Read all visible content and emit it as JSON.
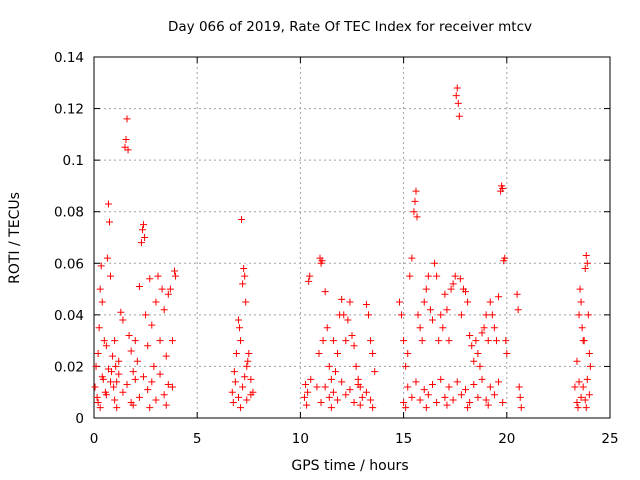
{
  "chart_data": {
    "type": "scatter",
    "title": "Day 066 of 2019, Rate Of TEC Index for receiver mtcv",
    "xlabel": "GPS time / hours",
    "ylabel": "ROTI / TECUs",
    "xlim": [
      0,
      25
    ],
    "ylim": [
      0,
      0.14
    ],
    "x_ticks": [
      0,
      5,
      10,
      15,
      20,
      25
    ],
    "x_tick_labels": [
      "0",
      "5",
      "10",
      "15",
      "20",
      "25"
    ],
    "y_ticks": [
      0,
      0.02,
      0.04,
      0.06,
      0.08,
      0.1,
      0.12,
      0.14
    ],
    "y_tick_labels": [
      "0",
      "0.02",
      "0.04",
      "0.06",
      "0.08",
      "0.1",
      "0.12",
      "0.14"
    ],
    "grid": true,
    "marker": "plus",
    "color": "#ff0000",
    "series": [
      {
        "points": [
          [
            0.05,
            0.012
          ],
          [
            0.1,
            0.02
          ],
          [
            0.15,
            0.008
          ],
          [
            0.2,
            0.025
          ],
          [
            0.25,
            0.035
          ],
          [
            0.3,
            0.05
          ],
          [
            0.35,
            0.059
          ],
          [
            0.4,
            0.045
          ],
          [
            0.45,
            0.015
          ],
          [
            0.5,
            0.03
          ],
          [
            0.55,
            0.01
          ],
          [
            0.6,
            0.028
          ],
          [
            0.65,
            0.062
          ],
          [
            0.7,
            0.083
          ],
          [
            0.75,
            0.076
          ],
          [
            0.8,
            0.055
          ],
          [
            0.85,
            0.018
          ],
          [
            0.9,
            0.024
          ],
          [
            0.95,
            0.012
          ],
          [
            1.0,
            0.03
          ],
          [
            1.05,
            0.02
          ],
          [
            1.1,
            0.014
          ],
          [
            1.2,
            0.022
          ],
          [
            1.3,
            0.041
          ],
          [
            1.4,
            0.038
          ],
          [
            1.5,
            0.105
          ],
          [
            1.55,
            0.108
          ],
          [
            1.6,
            0.116
          ],
          [
            1.65,
            0.104
          ],
          [
            1.7,
            0.032
          ],
          [
            1.8,
            0.026
          ],
          [
            1.9,
            0.018
          ],
          [
            2.0,
            0.03
          ],
          [
            2.1,
            0.022
          ],
          [
            2.2,
            0.051
          ],
          [
            2.3,
            0.068
          ],
          [
            2.35,
            0.073
          ],
          [
            2.4,
            0.075
          ],
          [
            2.45,
            0.07
          ],
          [
            2.5,
            0.04
          ],
          [
            2.6,
            0.028
          ],
          [
            2.7,
            0.054
          ],
          [
            2.8,
            0.036
          ],
          [
            2.9,
            0.02
          ],
          [
            3.0,
            0.045
          ],
          [
            3.1,
            0.055
          ],
          [
            3.2,
            0.03
          ],
          [
            3.3,
            0.05
          ],
          [
            3.4,
            0.042
          ],
          [
            3.5,
            0.024
          ],
          [
            3.6,
            0.048
          ],
          [
            3.7,
            0.05
          ],
          [
            3.8,
            0.03
          ],
          [
            3.9,
            0.057
          ],
          [
            3.95,
            0.055
          ],
          [
            0.2,
            0.006
          ],
          [
            0.6,
            0.009
          ],
          [
            1.0,
            0.007
          ],
          [
            1.4,
            0.01
          ],
          [
            1.8,
            0.006
          ],
          [
            2.2,
            0.008
          ],
          [
            2.6,
            0.011
          ],
          [
            3.0,
            0.007
          ],
          [
            3.4,
            0.009
          ],
          [
            3.8,
            0.012
          ],
          [
            0.4,
            0.016
          ],
          [
            0.8,
            0.014
          ],
          [
            1.2,
            0.017
          ],
          [
            1.6,
            0.013
          ],
          [
            2.0,
            0.015
          ],
          [
            2.4,
            0.016
          ],
          [
            2.8,
            0.014
          ],
          [
            3.2,
            0.017
          ],
          [
            3.6,
            0.013
          ],
          [
            0.3,
            0.004
          ],
          [
            1.1,
            0.004
          ],
          [
            1.9,
            0.005
          ],
          [
            2.7,
            0.004
          ],
          [
            3.5,
            0.005
          ],
          [
            0.7,
            0.019
          ],
          [
            6.7,
            0.01
          ],
          [
            6.8,
            0.018
          ],
          [
            6.9,
            0.025
          ],
          [
            7.0,
            0.038
          ],
          [
            7.05,
            0.035
          ],
          [
            7.1,
            0.03
          ],
          [
            7.15,
            0.077
          ],
          [
            7.2,
            0.052
          ],
          [
            7.25,
            0.058
          ],
          [
            7.3,
            0.055
          ],
          [
            7.35,
            0.045
          ],
          [
            7.4,
            0.02
          ],
          [
            7.5,
            0.025
          ],
          [
            7.6,
            0.015
          ],
          [
            7.7,
            0.01
          ],
          [
            6.75,
            0.006
          ],
          [
            7.0,
            0.008
          ],
          [
            7.2,
            0.012
          ],
          [
            7.4,
            0.007
          ],
          [
            7.6,
            0.009
          ],
          [
            6.85,
            0.014
          ],
          [
            7.3,
            0.016
          ],
          [
            7.1,
            0.004
          ],
          [
            7.45,
            0.022
          ],
          [
            10.2,
            0.008
          ],
          [
            10.25,
            0.013
          ],
          [
            10.3,
            0.005
          ],
          [
            10.35,
            0.01
          ],
          [
            10.4,
            0.053
          ],
          [
            10.45,
            0.055
          ],
          [
            10.5,
            0.015
          ],
          [
            10.8,
            0.012
          ],
          [
            10.9,
            0.025
          ],
          [
            10.95,
            0.062
          ],
          [
            11.0,
            0.06
          ],
          [
            11.05,
            0.061
          ],
          [
            11.1,
            0.03
          ],
          [
            11.2,
            0.049
          ],
          [
            11.3,
            0.035
          ],
          [
            11.4,
            0.02
          ],
          [
            11.5,
            0.015
          ],
          [
            11.6,
            0.03
          ],
          [
            11.7,
            0.018
          ],
          [
            11.8,
            0.025
          ],
          [
            11.9,
            0.04
          ],
          [
            12.0,
            0.046
          ],
          [
            12.1,
            0.04
          ],
          [
            12.2,
            0.03
          ],
          [
            12.3,
            0.038
          ],
          [
            12.4,
            0.045
          ],
          [
            12.5,
            0.032
          ],
          [
            12.6,
            0.028
          ],
          [
            12.7,
            0.02
          ],
          [
            12.8,
            0.015
          ],
          [
            12.9,
            0.012
          ],
          [
            13.2,
            0.044
          ],
          [
            13.3,
            0.04
          ],
          [
            13.4,
            0.03
          ],
          [
            13.5,
            0.025
          ],
          [
            13.6,
            0.018
          ],
          [
            11.0,
            0.006
          ],
          [
            11.4,
            0.008
          ],
          [
            11.8,
            0.007
          ],
          [
            12.2,
            0.009
          ],
          [
            12.6,
            0.006
          ],
          [
            13.0,
            0.008
          ],
          [
            13.4,
            0.007
          ],
          [
            11.2,
            0.012
          ],
          [
            11.6,
            0.01
          ],
          [
            12.0,
            0.014
          ],
          [
            12.4,
            0.011
          ],
          [
            12.8,
            0.013
          ],
          [
            13.2,
            0.01
          ],
          [
            13.5,
            0.004
          ],
          [
            12.9,
            0.005
          ],
          [
            11.5,
            0.004
          ],
          [
            14.8,
            0.045
          ],
          [
            14.9,
            0.04
          ],
          [
            15.0,
            0.03
          ],
          [
            15.1,
            0.02
          ],
          [
            15.2,
            0.025
          ],
          [
            15.3,
            0.055
          ],
          [
            15.4,
            0.062
          ],
          [
            15.5,
            0.08
          ],
          [
            15.55,
            0.084
          ],
          [
            15.6,
            0.088
          ],
          [
            15.65,
            0.078
          ],
          [
            15.7,
            0.04
          ],
          [
            15.8,
            0.035
          ],
          [
            15.9,
            0.03
          ],
          [
            16.0,
            0.045
          ],
          [
            16.1,
            0.05
          ],
          [
            16.2,
            0.055
          ],
          [
            16.3,
            0.042
          ],
          [
            16.4,
            0.038
          ],
          [
            16.5,
            0.06
          ],
          [
            16.6,
            0.055
          ],
          [
            16.7,
            0.03
          ],
          [
            16.8,
            0.04
          ],
          [
            16.9,
            0.035
          ],
          [
            17.0,
            0.048
          ],
          [
            17.1,
            0.042
          ],
          [
            17.2,
            0.03
          ],
          [
            17.3,
            0.05
          ],
          [
            17.4,
            0.052
          ],
          [
            17.5,
            0.055
          ],
          [
            17.55,
            0.125
          ],
          [
            17.6,
            0.128
          ],
          [
            17.65,
            0.122
          ],
          [
            17.7,
            0.117
          ],
          [
            17.75,
            0.054
          ],
          [
            17.8,
            0.04
          ],
          [
            17.9,
            0.05
          ],
          [
            18.0,
            0.049
          ],
          [
            18.1,
            0.045
          ],
          [
            18.2,
            0.032
          ],
          [
            18.3,
            0.028
          ],
          [
            18.4,
            0.022
          ],
          [
            18.5,
            0.03
          ],
          [
            18.6,
            0.025
          ],
          [
            18.7,
            0.02
          ],
          [
            18.8,
            0.033
          ],
          [
            18.9,
            0.035
          ],
          [
            19.0,
            0.04
          ],
          [
            19.1,
            0.03
          ],
          [
            19.2,
            0.045
          ],
          [
            19.3,
            0.04
          ],
          [
            19.4,
            0.035
          ],
          [
            19.5,
            0.03
          ],
          [
            19.6,
            0.047
          ],
          [
            19.7,
            0.088
          ],
          [
            19.75,
            0.09
          ],
          [
            19.8,
            0.089
          ],
          [
            19.85,
            0.061
          ],
          [
            19.9,
            0.062
          ],
          [
            19.95,
            0.03
          ],
          [
            20.0,
            0.025
          ],
          [
            15.0,
            0.006
          ],
          [
            15.4,
            0.008
          ],
          [
            15.8,
            0.007
          ],
          [
            16.2,
            0.009
          ],
          [
            16.6,
            0.006
          ],
          [
            17.0,
            0.008
          ],
          [
            17.4,
            0.007
          ],
          [
            17.8,
            0.009
          ],
          [
            18.2,
            0.006
          ],
          [
            18.6,
            0.008
          ],
          [
            19.0,
            0.007
          ],
          [
            19.4,
            0.009
          ],
          [
            19.8,
            0.006
          ],
          [
            15.2,
            0.012
          ],
          [
            15.6,
            0.014
          ],
          [
            16.0,
            0.011
          ],
          [
            16.4,
            0.013
          ],
          [
            16.8,
            0.015
          ],
          [
            17.2,
            0.012
          ],
          [
            17.6,
            0.014
          ],
          [
            18.0,
            0.011
          ],
          [
            18.4,
            0.013
          ],
          [
            18.8,
            0.015
          ],
          [
            19.2,
            0.012
          ],
          [
            19.6,
            0.014
          ],
          [
            15.1,
            0.004
          ],
          [
            16.1,
            0.004
          ],
          [
            17.1,
            0.005
          ],
          [
            18.1,
            0.004
          ],
          [
            19.1,
            0.005
          ],
          [
            20.5,
            0.048
          ],
          [
            20.55,
            0.042
          ],
          [
            20.6,
            0.012
          ],
          [
            20.65,
            0.008
          ],
          [
            20.7,
            0.004
          ],
          [
            23.3,
            0.012
          ],
          [
            23.4,
            0.022
          ],
          [
            23.5,
            0.04
          ],
          [
            23.55,
            0.05
          ],
          [
            23.6,
            0.045
          ],
          [
            23.65,
            0.035
          ],
          [
            23.7,
            0.03
          ],
          [
            23.75,
            0.03
          ],
          [
            23.8,
            0.058
          ],
          [
            23.85,
            0.063
          ],
          [
            23.9,
            0.06
          ],
          [
            23.95,
            0.04
          ],
          [
            24.0,
            0.025
          ],
          [
            24.05,
            0.02
          ],
          [
            23.4,
            0.006
          ],
          [
            23.6,
            0.008
          ],
          [
            23.8,
            0.007
          ],
          [
            24.0,
            0.009
          ],
          [
            23.5,
            0.014
          ],
          [
            23.7,
            0.012
          ],
          [
            23.9,
            0.015
          ],
          [
            23.45,
            0.004
          ],
          [
            23.85,
            0.004
          ]
        ]
      }
    ]
  }
}
